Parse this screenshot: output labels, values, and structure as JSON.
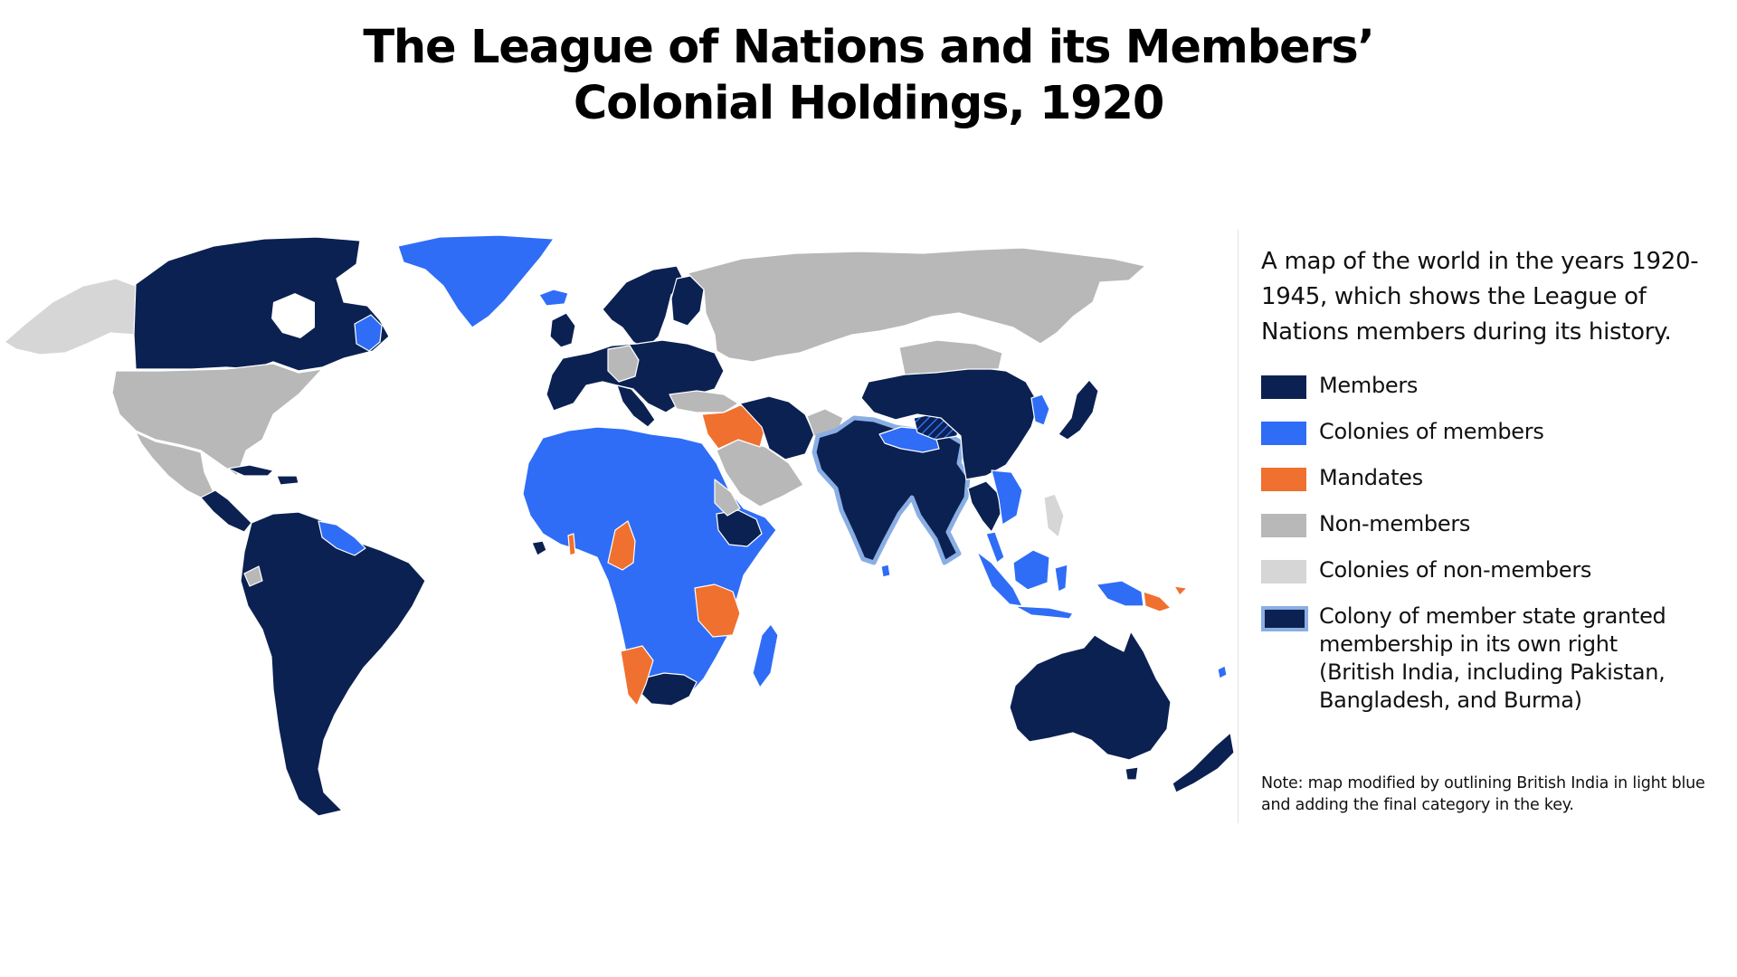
{
  "title": {
    "line1": "The League of Nations and its Members’",
    "line2": "Colonial Holdings, 1920"
  },
  "legend": {
    "description": "A map of the world in the years 1920-1945, which shows the League of Nations members during its history.",
    "items": [
      {
        "label": "Members",
        "color": "#0b2152"
      },
      {
        "label": "Colonies of members",
        "color": "#2f6df6"
      },
      {
        "label": "Mandates",
        "color": "#f0702f"
      },
      {
        "label": "Non-members",
        "color": "#b8b8b8"
      },
      {
        "label": "Colonies of non-members",
        "color": "#d6d6d6"
      },
      {
        "label_lines": [
          "Colony of member state granted",
          "membership in its own right",
          "(British India, including Pakistan,",
          "Bangladesh, and Burma)"
        ],
        "color": "#0b2152",
        "outline": "#8aaee3"
      }
    ]
  },
  "note": {
    "line1": "Note: map modified by outlining British India in light blue",
    "line2": "and adding the final category in the key."
  },
  "colors": {
    "member": "#0b2152",
    "colony_member": "#2f6df6",
    "mandate": "#f0702f",
    "non_member": "#b8b8b8",
    "colony_non_member": "#d6d6d6",
    "india_outline": "#8aaee3",
    "border": "#ffffff"
  }
}
